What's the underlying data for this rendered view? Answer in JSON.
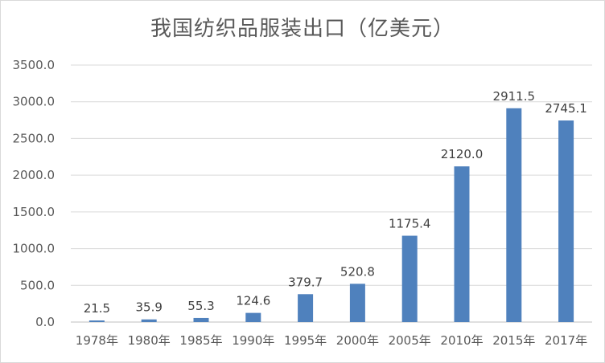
{
  "chart_data": {
    "type": "bar",
    "title": "我国纺织品服装出口（亿美元）",
    "xlabel": "",
    "ylabel": "",
    "categories": [
      "1978年",
      "1980年",
      "1985年",
      "1990年",
      "1995年",
      "2000年",
      "2005年",
      "2010年",
      "2015年",
      "2017年"
    ],
    "values": [
      21.5,
      35.9,
      55.3,
      124.6,
      379.7,
      520.8,
      1175.4,
      2120.0,
      2911.5,
      2745.1
    ],
    "value_labels": [
      "21.5",
      "35.9",
      "55.3",
      "124.6",
      "379.7",
      "520.8",
      "1175.4",
      "2120.0",
      "2911.5",
      "2745.1"
    ],
    "y_ticks": [
      "0.0",
      "500.0",
      "1000.0",
      "1500.0",
      "2000.0",
      "2500.0",
      "3000.0",
      "3500.0"
    ],
    "ylim": [
      0,
      3500
    ],
    "grid": true,
    "legend": "none",
    "bar_color": "#4f81bd"
  }
}
